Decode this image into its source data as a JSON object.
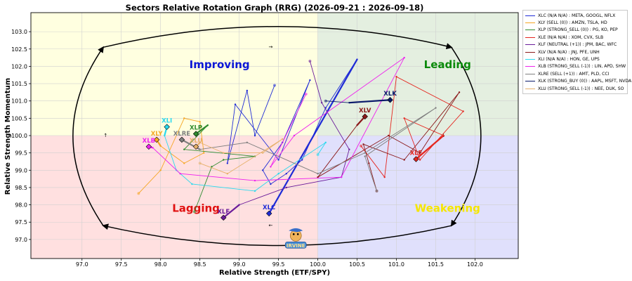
{
  "chart_data": {
    "type": "scatter",
    "title": "Sectors Relative Rotation Graph (RRG) (2026-09-21 : 2026-09-18)",
    "xlabel": "Relative Strength (ETF/SPY)",
    "ylabel": "Relative Strength Momentum",
    "xlim": [
      96.35,
      102.55
    ],
    "ylim": [
      96.45,
      103.55
    ],
    "xticks": [
      "97.0",
      "97.5",
      "98.0",
      "98.5",
      "99.0",
      "99.5",
      "100.0",
      "100.5",
      "101.0",
      "101.5",
      "102.0"
    ],
    "yticks": [
      "97.0",
      "97.5",
      "98.0",
      "98.5",
      "99.0",
      "99.5",
      "100.0",
      "100.5",
      "101.0",
      "101.5",
      "102.0",
      "102.5",
      "103.0"
    ],
    "center": [
      100,
      100
    ],
    "grid": true,
    "legend_position": "outside-right",
    "quadrants": [
      {
        "label": "Improving",
        "color": "#0b17d6",
        "bg": "#ffffe0"
      },
      {
        "label": "Leading",
        "color": "#0a8a0a",
        "bg": "#e4efe0"
      },
      {
        "label": "Lagging",
        "color": "#e01010",
        "bg": "#ffe0e0"
      },
      {
        "label": "Weakening",
        "color": "#f5e600",
        "bg": "#e0e0fc"
      }
    ],
    "series": [
      {
        "symbol": "XLC",
        "name": "XLC (N/A N/A) : META, GOOGL, NFLX",
        "color": "#1f2bd6",
        "points": [
          [
            99.45,
            101.45
          ],
          [
            99.2,
            100.0
          ],
          [
            99.1,
            101.3
          ],
          [
            98.85,
            99.2
          ],
          [
            98.95,
            100.9
          ],
          [
            99.5,
            99.3
          ],
          [
            99.9,
            101.6
          ],
          [
            99.55,
            99.8
          ],
          [
            99.3,
            99.0
          ],
          [
            99.4,
            98.6
          ],
          [
            99.6,
            98.9
          ],
          [
            99.8,
            99.3
          ],
          [
            100.1,
            100.8
          ],
          [
            100.5,
            102.2
          ],
          [
            99.38,
            97.75
          ]
        ]
      },
      {
        "symbol": "XLY",
        "name": "XLY (SELL (0)) : AMZN, TSLA, HD",
        "color": "#f5a623",
        "points": [
          [
            97.72,
            98.33
          ],
          [
            98.0,
            99.0
          ],
          [
            98.3,
            100.5
          ],
          [
            98.5,
            100.4
          ],
          [
            98.55,
            99.5
          ],
          [
            98.3,
            99.2
          ],
          [
            98.0,
            99.7
          ],
          [
            97.95,
            99.88
          ]
        ]
      },
      {
        "symbol": "XLP",
        "name": "XLP (STRONG_SELL (0)) : PG, KO, PEP",
        "color": "#2e8b2e",
        "points": [
          [
            98.43,
            97.8
          ],
          [
            98.65,
            99.1
          ],
          [
            98.8,
            99.3
          ],
          [
            99.2,
            99.4
          ],
          [
            98.3,
            99.6
          ],
          [
            98.6,
            100.3
          ],
          [
            98.45,
            100.05
          ]
        ]
      },
      {
        "symbol": "XLE",
        "name": "XLE (N/A N/A) : XOM, CVX, SLB",
        "color": "#e5261f",
        "points": [
          [
            100.55,
            99.7
          ],
          [
            100.85,
            98.8
          ],
          [
            101.0,
            101.7
          ],
          [
            101.85,
            100.7
          ],
          [
            101.3,
            99.3
          ],
          [
            101.1,
            100.5
          ],
          [
            101.6,
            100.0
          ],
          [
            101.25,
            99.32
          ]
        ]
      },
      {
        "symbol": "XLF",
        "name": "XLF (NEUTRAL (+1)) : JPM, BAC, WFC",
        "color": "#6a1b9a",
        "points": [
          [
            99.9,
            102.15
          ],
          [
            100.05,
            100.95
          ],
          [
            100.4,
            99.6
          ],
          [
            100.3,
            98.8
          ],
          [
            99.6,
            98.5
          ],
          [
            99.0,
            98.0
          ],
          [
            98.8,
            97.63
          ]
        ]
      },
      {
        "symbol": "XLV",
        "name": "XLV (N/A N/A) : JNJ, PFE, UNH",
        "color": "#8b1a1a",
        "points": [
          [
            100.75,
            98.4
          ],
          [
            100.65,
            99.2
          ],
          [
            100.58,
            99.75
          ],
          [
            101.1,
            99.3
          ],
          [
            101.8,
            101.25
          ],
          [
            101.3,
            99.5
          ],
          [
            100.9,
            100.0
          ],
          [
            100.0,
            98.8
          ],
          [
            100.5,
            100.3
          ],
          [
            100.6,
            100.55
          ]
        ]
      },
      {
        "symbol": "XLI",
        "name": "XLI (N/A N/A) : HON, GE, UPS",
        "color": "#29d9ee",
        "points": [
          [
            100.0,
            99.45
          ],
          [
            100.1,
            99.8
          ],
          [
            99.5,
            98.9
          ],
          [
            99.2,
            98.4
          ],
          [
            98.4,
            98.6
          ],
          [
            98.2,
            99.0
          ],
          [
            98.05,
            100.0
          ],
          [
            98.08,
            100.25
          ]
        ]
      },
      {
        "symbol": "XLB",
        "name": "XLB (STRONG_SELL (-1)) : LIN, APD, SHW",
        "color": "#ee22ee",
        "points": [
          [
            99.85,
            101.2
          ],
          [
            99.4,
            99.1
          ],
          [
            99.7,
            100.0
          ],
          [
            101.1,
            102.25
          ],
          [
            100.3,
            98.8
          ],
          [
            99.2,
            98.7
          ],
          [
            98.25,
            98.9
          ],
          [
            97.9,
            99.65
          ],
          [
            97.85,
            99.68
          ]
        ]
      },
      {
        "symbol": "XLRE",
        "name": "XLRE (SELL (+1)) : AMT, PLD, CCI",
        "color": "#7f7f7f",
        "points": [
          [
            100.75,
            98.4
          ],
          [
            100.6,
            99.4
          ],
          [
            101.5,
            100.8
          ],
          [
            100.6,
            99.5
          ],
          [
            100.0,
            98.9
          ],
          [
            99.1,
            99.8
          ],
          [
            98.5,
            99.6
          ],
          [
            98.27,
            99.88
          ]
        ]
      },
      {
        "symbol": "XLK",
        "name": "XLK (STRONG_BUY (0)) : AAPL, MSFT, NVDA",
        "color": "#0a1a6b",
        "points": [
          [
            100.1,
            101.0
          ],
          [
            100.4,
            100.95
          ],
          [
            100.92,
            101.03
          ]
        ]
      },
      {
        "symbol": "XLU",
        "name": "XLU (STRONG_SELL (-1)) : NEE, DUK, SO",
        "color": "#e6b06a",
        "points": [
          [
            98.5,
            99.2
          ],
          [
            98.85,
            98.9
          ],
          [
            99.55,
            99.9
          ],
          [
            99.3,
            99.5
          ],
          [
            98.8,
            99.5
          ],
          [
            98.5,
            99.8
          ],
          [
            98.45,
            99.68
          ]
        ]
      }
    ]
  },
  "watermark": {
    "text": "IRVINE"
  }
}
